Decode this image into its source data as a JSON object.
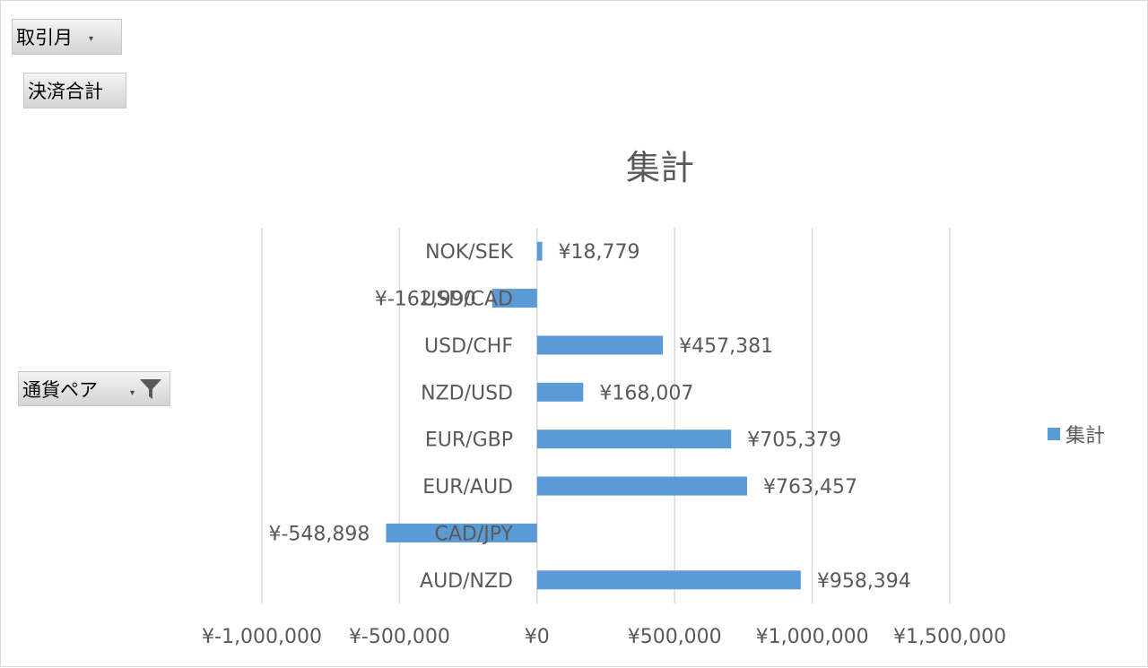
{
  "filters": {
    "month_label": "取引月",
    "settle_label": "決済合計",
    "pair_label": "通貨ペア"
  },
  "icons": {
    "month_dropdown": "chevron-down-icon",
    "pair_dropdown": "chevron-down-icon",
    "pair_filter": "filter-icon"
  },
  "colors": {
    "bar": "#5b9bd5",
    "grid": "#d9d9d9",
    "text": "#595959"
  },
  "chart_data": {
    "type": "bar",
    "orientation": "horizontal",
    "title": "集計",
    "categories": [
      "NOK/SEK",
      "USD/CAD",
      "USD/CHF",
      "NZD/USD",
      "EUR/GBP",
      "EUR/AUD",
      "CAD/JPY",
      "AUD/NZD"
    ],
    "series": [
      {
        "name": "集計",
        "values": [
          18779,
          -162990,
          457381,
          168007,
          705379,
          763457,
          -548898,
          958394
        ],
        "labels": [
          "¥18,779",
          "¥-162,990",
          "¥457,381",
          "¥168,007",
          "¥705,379",
          "¥763,457",
          "¥-548,898",
          "¥958,394"
        ]
      }
    ],
    "xlim": [
      -1000000,
      1500000
    ],
    "xticks": [
      -1000000,
      -500000,
      0,
      500000,
      1000000,
      1500000
    ],
    "xtick_labels": [
      "¥-1,000,000",
      "¥-500,000",
      "¥0",
      "¥500,000",
      "¥1,000,000",
      "¥1,500,000"
    ],
    "grid": true,
    "legend": "right",
    "legend_entries": [
      "集計"
    ]
  }
}
